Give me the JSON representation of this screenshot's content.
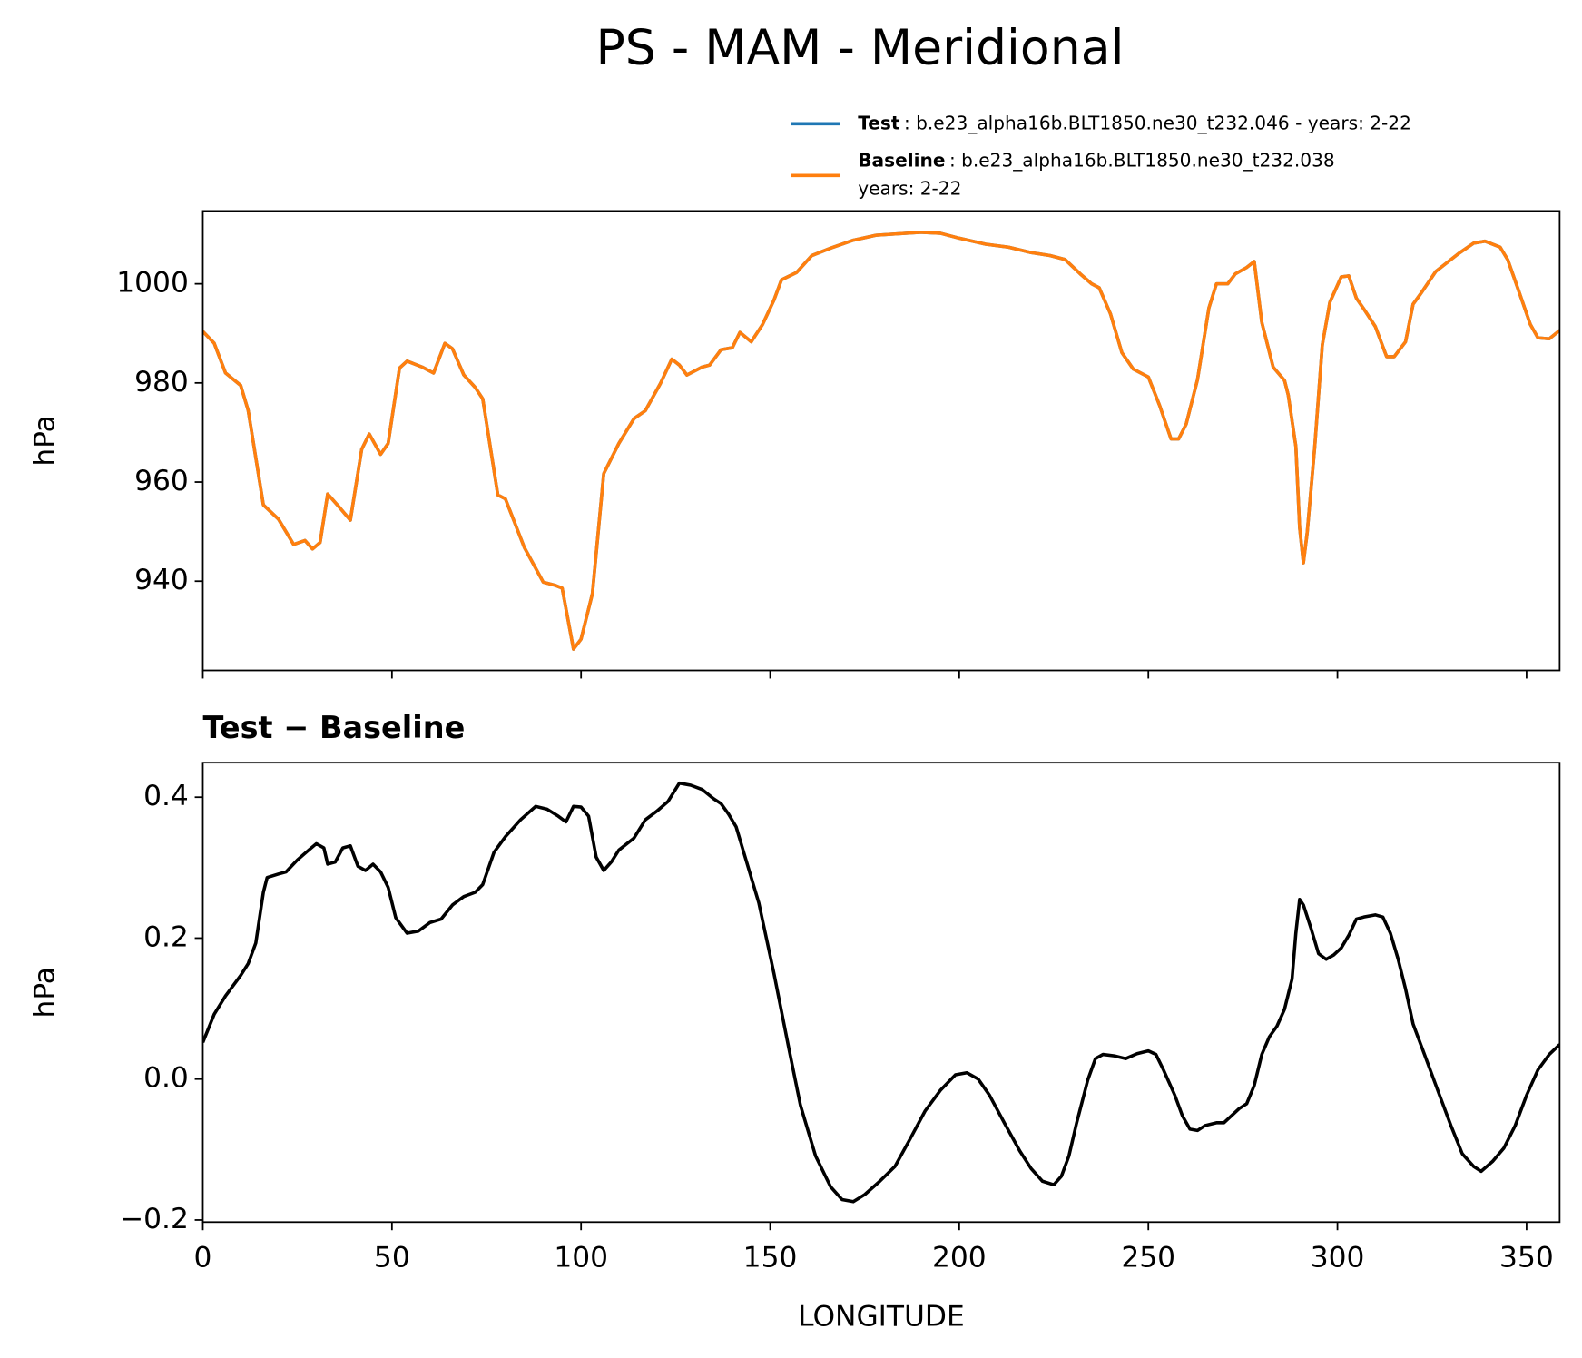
{
  "chart_data": [
    {
      "type": "line",
      "title": "PS - MAM - Meridional",
      "ylabel": "hPa",
      "xlim": [
        0,
        358.75
      ],
      "xticks": [
        0,
        50,
        100,
        150,
        200,
        250,
        300,
        350
      ],
      "ylim": [
        922,
        1014.7
      ],
      "yticks": [
        940,
        960,
        980,
        1000
      ],
      "x": [
        0,
        3,
        6,
        10,
        12,
        16,
        20,
        24,
        27,
        29,
        31,
        33,
        36,
        39,
        42,
        44,
        47,
        49,
        52,
        54,
        58,
        61,
        64,
        66,
        69,
        72,
        74,
        78,
        80,
        85,
        90,
        93,
        95,
        98,
        100,
        103,
        106,
        110,
        114,
        117,
        121,
        124,
        126,
        128,
        132,
        134,
        137,
        140,
        142,
        145,
        148,
        151,
        153,
        157,
        161,
        166,
        172,
        178,
        190,
        195,
        200,
        207,
        213,
        219,
        224,
        228,
        232,
        235,
        237,
        240,
        243,
        246,
        250,
        253,
        256,
        258,
        260,
        263,
        266,
        268,
        271,
        273,
        276,
        278,
        280,
        283,
        286,
        287,
        289,
        290,
        291,
        292,
        294,
        296,
        298,
        301,
        303,
        305,
        307,
        310,
        313,
        315,
        318,
        320,
        322,
        326,
        332,
        336,
        339,
        343,
        345,
        348,
        351,
        353,
        356,
        358.75
      ],
      "series": [
        {
          "name": "Test",
          "detail": [
            ": b.e23_alpha16b.BLT1850.ne30_t232.046 - years: 2-22"
          ],
          "color": "#1f77b4",
          "values": [
            990.4,
            988,
            982,
            979.5,
            974.4,
            955.4,
            952.5,
            947.4,
            948.2,
            946.5,
            947.8,
            957.6,
            955,
            952.3,
            966.6,
            969.7,
            965.6,
            967.8,
            983,
            984.4,
            983.2,
            982,
            988,
            986.9,
            981.6,
            979.1,
            976.8,
            957.4,
            956.6,
            946.8,
            939.8,
            939.2,
            938.6,
            926.3,
            928.3,
            937.5,
            961.7,
            967.8,
            972.8,
            974.4,
            979.9,
            984.8,
            983.6,
            981.6,
            983.2,
            983.6,
            986.7,
            987.1,
            990.2,
            988.3,
            991.8,
            996.7,
            1000.8,
            1002.3,
            1005.7,
            1007.2,
            1008.8,
            1009.8,
            1010.4,
            1010.2,
            1009.2,
            1008,
            1007.4,
            1006.3,
            1005.7,
            1004.9,
            1002,
            1000,
            999.2,
            993.9,
            986.1,
            982.8,
            981.2,
            975.4,
            968.7,
            968.7,
            971.7,
            980.7,
            995.1,
            1000,
            1000,
            1002,
            1003.3,
            1004.5,
            992.2,
            983.2,
            980.5,
            977.5,
            967.2,
            950.8,
            943.7,
            949.8,
            967.2,
            987.7,
            996.3,
            1001.4,
            1001.6,
            997.1,
            994.9,
            991.4,
            985.3,
            985.3,
            988.3,
            995.9,
            998,
            1002.5,
            1006.1,
            1008.2,
            1008.6,
            1007.4,
            1004.9,
            998.4,
            991.8,
            989.1,
            988.9,
            990.6
          ]
        },
        {
          "name": "Baseline",
          "detail": [
            ": b.e23_alpha16b.BLT1850.ne30_t232.038",
            "years: 2-22"
          ],
          "color": "#ff7f0e",
          "values": [
            990.4,
            988,
            982,
            979.5,
            974.4,
            955.4,
            952.5,
            947.4,
            948.2,
            946.5,
            947.8,
            957.6,
            955,
            952.3,
            966.6,
            969.7,
            965.6,
            967.8,
            983,
            984.4,
            983.2,
            982,
            988,
            986.9,
            981.6,
            979.1,
            976.8,
            957.4,
            956.6,
            946.8,
            939.8,
            939.2,
            938.6,
            926.3,
            928.3,
            937.5,
            961.7,
            967.8,
            972.8,
            974.4,
            979.9,
            984.8,
            983.6,
            981.6,
            983.2,
            983.6,
            986.7,
            987.1,
            990.2,
            988.3,
            991.8,
            996.7,
            1000.8,
            1002.3,
            1005.7,
            1007.2,
            1008.8,
            1009.8,
            1010.4,
            1010.2,
            1009.2,
            1008,
            1007.4,
            1006.3,
            1005.7,
            1004.9,
            1002,
            1000,
            999.2,
            993.9,
            986.1,
            982.8,
            981.2,
            975.4,
            968.7,
            968.7,
            971.7,
            980.7,
            995.1,
            1000,
            1000,
            1002,
            1003.3,
            1004.5,
            992.2,
            983.2,
            980.5,
            977.5,
            967.2,
            950.8,
            943.7,
            949.8,
            967.2,
            987.7,
            996.3,
            1001.4,
            1001.6,
            997.1,
            994.9,
            991.4,
            985.3,
            985.3,
            988.3,
            995.9,
            998,
            1002.5,
            1006.1,
            1008.2,
            1008.6,
            1007.4,
            1004.9,
            998.4,
            991.8,
            989.1,
            988.9,
            990.6
          ]
        }
      ]
    },
    {
      "type": "line",
      "title": "Test − Baseline",
      "ylabel": "hPa",
      "xlabel": "LONGITUDE",
      "xlim": [
        0,
        358.75
      ],
      "xticks": [
        0,
        50,
        100,
        150,
        200,
        250,
        300,
        350
      ],
      "ylim": [
        -0.203,
        0.449
      ],
      "yticks": [
        {
          "value": -0.2,
          "label": "−0.2"
        },
        {
          "value": 0,
          "label": "0.0"
        },
        0.2,
        0.4
      ],
      "x": [
        0,
        3,
        6,
        10,
        12,
        14,
        16,
        17,
        20,
        22,
        25,
        28,
        30,
        32,
        33,
        35,
        37,
        39,
        41,
        43,
        45,
        47,
        49,
        51,
        54,
        57,
        60,
        63,
        66,
        69,
        72,
        74,
        77,
        80,
        84,
        88,
        91,
        94,
        96,
        98,
        100,
        102,
        104,
        106,
        108,
        110,
        114,
        117,
        120,
        123,
        126,
        129,
        132,
        135,
        137,
        139,
        141,
        143,
        147,
        151,
        155,
        158,
        162,
        166,
        169,
        172,
        175,
        179,
        183,
        187,
        191,
        195,
        199,
        202,
        205,
        208,
        212,
        216,
        219,
        222,
        225,
        227,
        229,
        231,
        234,
        236,
        238,
        241,
        244,
        247,
        250,
        252,
        254,
        257,
        259,
        261,
        263,
        265,
        268,
        270,
        272,
        274,
        276,
        278,
        280,
        282,
        284,
        286,
        288,
        289,
        290,
        291,
        293,
        295,
        297,
        299,
        301,
        303,
        305,
        307,
        310,
        312,
        314,
        316,
        318,
        320,
        323,
        327,
        330,
        333,
        336,
        338,
        341,
        344,
        347,
        350,
        353,
        356,
        358.75
      ],
      "series": [
        {
          "name": "Test − Baseline",
          "color": "#000000",
          "values": [
            0.052,
            0.092,
            0.118,
            0.147,
            0.164,
            0.193,
            0.265,
            0.286,
            0.291,
            0.294,
            0.311,
            0.325,
            0.334,
            0.328,
            0.305,
            0.308,
            0.328,
            0.331,
            0.302,
            0.296,
            0.305,
            0.294,
            0.272,
            0.229,
            0.207,
            0.21,
            0.222,
            0.227,
            0.247,
            0.259,
            0.265,
            0.276,
            0.322,
            0.344,
            0.368,
            0.387,
            0.383,
            0.373,
            0.365,
            0.387,
            0.386,
            0.373,
            0.315,
            0.296,
            0.308,
            0.325,
            0.342,
            0.368,
            0.38,
            0.394,
            0.42,
            0.417,
            0.411,
            0.398,
            0.391,
            0.376,
            0.358,
            0.322,
            0.25,
            0.15,
            0.042,
            -0.037,
            -0.109,
            -0.153,
            -0.171,
            -0.174,
            -0.164,
            -0.145,
            -0.124,
            -0.085,
            -0.045,
            -0.016,
            0.006,
            0.009,
            0,
            -0.023,
            -0.063,
            -0.102,
            -0.127,
            -0.145,
            -0.15,
            -0.138,
            -0.109,
            -0.063,
            -0.001,
            0.029,
            0.035,
            0.033,
            0.029,
            0.036,
            0.04,
            0.035,
            0.013,
            -0.023,
            -0.052,
            -0.071,
            -0.073,
            -0.066,
            -0.062,
            -0.062,
            -0.052,
            -0.042,
            -0.035,
            -0.009,
            0.035,
            0.06,
            0.075,
            0.099,
            0.142,
            0.207,
            0.255,
            0.247,
            0.214,
            0.178,
            0.17,
            0.176,
            0.186,
            0.204,
            0.227,
            0.23,
            0.233,
            0.23,
            0.207,
            0.171,
            0.128,
            0.078,
            0.035,
            -0.023,
            -0.066,
            -0.106,
            -0.124,
            -0.131,
            -0.117,
            -0.098,
            -0.066,
            -0.023,
            0.013,
            0.035,
            0.049
          ]
        }
      ]
    }
  ]
}
